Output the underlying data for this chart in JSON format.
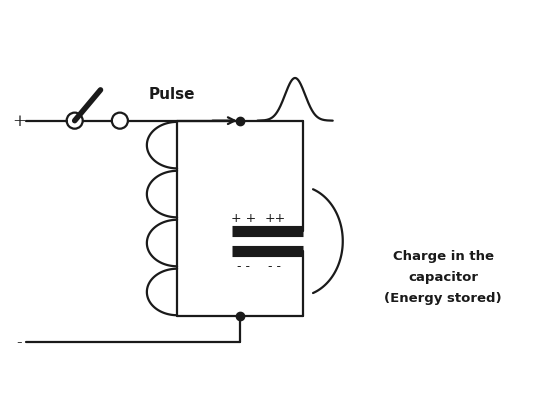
{
  "background_color": "#ffffff",
  "line_color": "#1a1a1a",
  "text_color": "#1a1a1a",
  "pulse_label": "Pulse",
  "charge_label": "Charge in the\ncapacitor\n(Energy stored)",
  "plus_terminal": "+",
  "minus_terminal": "−",
  "figsize": [
    5.55,
    4.14
  ],
  "dpi": 100,
  "xlim": [
    0,
    11
  ],
  "ylim": [
    0,
    8
  ]
}
